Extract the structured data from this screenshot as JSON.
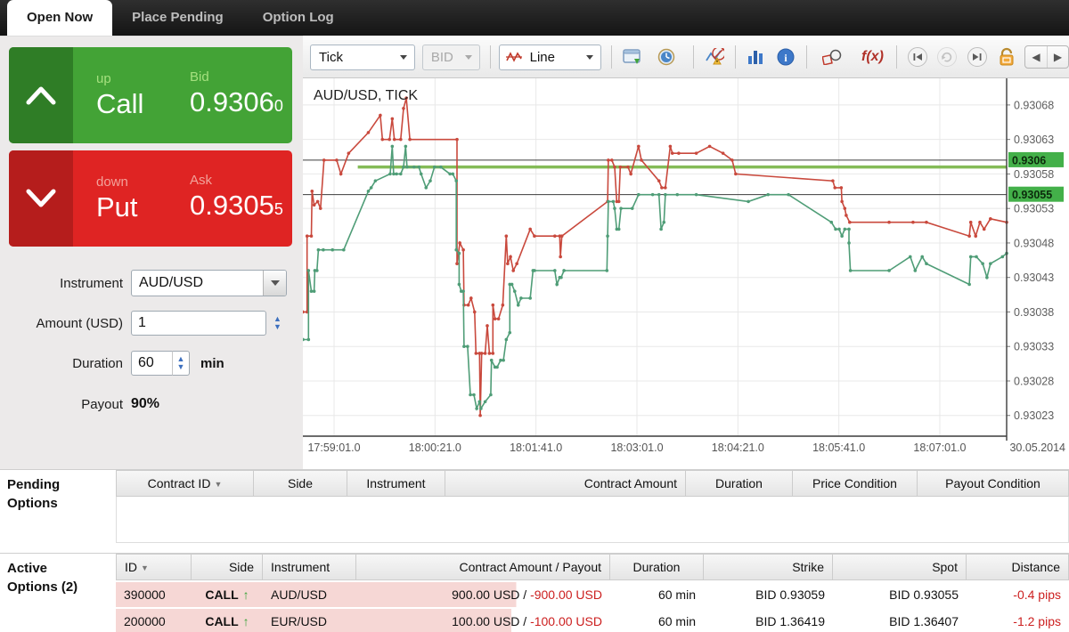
{
  "tabs": [
    {
      "label": "Open Now",
      "active": true
    },
    {
      "label": "Place Pending",
      "active": false
    },
    {
      "label": "Option Log",
      "active": false
    }
  ],
  "trade": {
    "call": {
      "small_label": "up",
      "main_label": "Call",
      "price_label": "Bid",
      "price": "0.9306",
      "price_sub": "0"
    },
    "put": {
      "small_label": "down",
      "main_label": "Put",
      "price_label": "Ask",
      "price": "0.9305",
      "price_sub": "5"
    }
  },
  "form": {
    "instrument_label": "Instrument",
    "instrument_value": "AUD/USD",
    "amount_label": "Amount (USD)",
    "amount_value": "1",
    "duration_label": "Duration",
    "duration_value": "60",
    "duration_unit": "min",
    "payout_label": "Payout",
    "payout_value": "90%"
  },
  "toolbar": {
    "period": "Tick",
    "side": "BID",
    "chart_type": "Line"
  },
  "icons": {
    "sort": "▼",
    "spin_up": "▲",
    "spin_down": "▼",
    "pan_left": "◀",
    "pan_right": "▶",
    "go_start": "◀",
    "repeat": "↻",
    "go_end": "▶",
    "fx": "f(x)",
    "call_arrow": "↑"
  },
  "chart_data": {
    "type": "line",
    "title": "AUD/USD, TICK",
    "date": "30.05.2014",
    "ylim": [
      0.9302,
      0.930716
    ],
    "yticks": [
      "0.93068",
      "0.93063",
      "0.93058",
      "0.93053",
      "0.93048",
      "0.93043",
      "0.93038",
      "0.93033",
      "0.93028",
      "0.93023"
    ],
    "xticks": [
      "17:59:01.0",
      "18:00:21.0",
      "18:01:41.0",
      "18:03:01.0",
      "18:04:21.0",
      "18:05:41.0",
      "18:07:01.0"
    ],
    "price_lines": [
      {
        "name": "current-bid",
        "price": 0.9306,
        "color": "#3c3c3c",
        "width": 1,
        "from": 0
      },
      {
        "name": "current-ask",
        "price": 0.93055,
        "color": "#3c3c3c",
        "width": 1,
        "from": 0
      },
      {
        "name": "strike",
        "price": 0.93059,
        "color": "#84bb57",
        "width": 3.5,
        "from": 7.8
      }
    ],
    "badges": [
      {
        "label": "0.9306",
        "price": 0.9306,
        "color": "#43b049"
      },
      {
        "label": "0.93055",
        "price": 0.93055,
        "color": "#43b049"
      }
    ],
    "series": [
      {
        "name": "ASK",
        "color": "#c9493d",
        "points": [
          [
            0,
            0.93038
          ],
          [
            0.6,
            0.93038
          ],
          [
            0.6,
            0.93049
          ],
          [
            1.2,
            0.93049
          ],
          [
            1.3,
            0.930555
          ],
          [
            1.6,
            0.930535
          ],
          [
            2.1,
            0.93054
          ],
          [
            2.5,
            0.93053
          ],
          [
            3,
            0.9306
          ],
          [
            4.8,
            0.9306
          ],
          [
            5.4,
            0.93058
          ],
          [
            6.5,
            0.93061
          ],
          [
            9.3,
            0.93064
          ],
          [
            11,
            0.930665
          ],
          [
            11.3,
            0.93063
          ],
          [
            12.3,
            0.93063
          ],
          [
            12.7,
            0.93066
          ],
          [
            13,
            0.93063
          ],
          [
            13.9,
            0.93063
          ],
          [
            14.3,
            0.930675
          ],
          [
            14.7,
            0.93069
          ],
          [
            15.2,
            0.93063
          ],
          [
            21.9,
            0.93063
          ],
          [
            21.9,
            0.93045
          ],
          [
            22.3,
            0.93048
          ],
          [
            22.8,
            0.93047
          ],
          [
            22.9,
            0.93039
          ],
          [
            23.5,
            0.93039
          ],
          [
            23.9,
            0.9304
          ],
          [
            24.4,
            0.93038
          ],
          [
            24.6,
            0.93032
          ],
          [
            25.1,
            0.93032
          ],
          [
            25.2,
            0.93023
          ],
          [
            25.4,
            0.93032
          ],
          [
            25.9,
            0.93032
          ],
          [
            26.2,
            0.93036
          ],
          [
            26.5,
            0.93032
          ],
          [
            27,
            0.93032
          ],
          [
            27,
            0.93039
          ],
          [
            27.3,
            0.93037
          ],
          [
            27.8,
            0.93037
          ],
          [
            28.4,
            0.93039
          ],
          [
            28.9,
            0.93049
          ],
          [
            29.1,
            0.93045
          ],
          [
            29.5,
            0.93046
          ],
          [
            29.9,
            0.93044
          ],
          [
            30.4,
            0.93045
          ],
          [
            32.3,
            0.9305
          ],
          [
            32.9,
            0.93049
          ],
          [
            35.8,
            0.93049
          ],
          [
            36.5,
            0.93049
          ],
          [
            36.6,
            0.93046
          ],
          [
            36.8,
            0.93049
          ],
          [
            43.3,
            0.93054
          ],
          [
            43.4,
            0.9306
          ],
          [
            43.9,
            0.9306
          ],
          [
            44.3,
            0.93059
          ],
          [
            44.6,
            0.93054
          ],
          [
            44.9,
            0.93054
          ],
          [
            45.1,
            0.93059
          ],
          [
            46.2,
            0.93059
          ],
          [
            46.6,
            0.93058
          ],
          [
            47.7,
            0.93062
          ],
          [
            48.1,
            0.9306
          ],
          [
            50.6,
            0.93057
          ],
          [
            51,
            0.93056
          ],
          [
            51.5,
            0.93056
          ],
          [
            52.2,
            0.93062
          ],
          [
            52.5,
            0.93061
          ],
          [
            53.4,
            0.93061
          ],
          [
            55.9,
            0.93061
          ],
          [
            57.8,
            0.93062
          ],
          [
            59.7,
            0.93061
          ],
          [
            61,
            0.9306
          ],
          [
            61.5,
            0.93058
          ],
          [
            75.3,
            0.93057
          ],
          [
            75.6,
            0.93056
          ],
          [
            76.5,
            0.93056
          ],
          [
            76.6,
            0.93054
          ],
          [
            77,
            0.93053
          ],
          [
            77.2,
            0.93052
          ],
          [
            77.7,
            0.93051
          ],
          [
            83.3,
            0.93051
          ],
          [
            86.7,
            0.93051
          ],
          [
            88.6,
            0.93051
          ],
          [
            94.7,
            0.93049
          ],
          [
            94.9,
            0.93051
          ],
          [
            95.6,
            0.93049
          ],
          [
            96.2,
            0.93051
          ],
          [
            96.8,
            0.9305
          ],
          [
            97.7,
            0.930515
          ],
          [
            100,
            0.93051
          ]
        ]
      },
      {
        "name": "BID",
        "color": "#4f9d77",
        "points": [
          [
            0,
            0.93034
          ],
          [
            0.8,
            0.93034
          ],
          [
            0.8,
            0.93044
          ],
          [
            1.2,
            0.93041
          ],
          [
            1.6,
            0.93041
          ],
          [
            1.7,
            0.93044
          ],
          [
            2,
            0.93044
          ],
          [
            2.2,
            0.93047
          ],
          [
            2.9,
            0.93047
          ],
          [
            4.2,
            0.93047
          ],
          [
            5.8,
            0.93047
          ],
          [
            9.3,
            0.930555
          ],
          [
            9.7,
            0.93056
          ],
          [
            10.3,
            0.93057
          ],
          [
            12.4,
            0.93058
          ],
          [
            12.7,
            0.93062
          ],
          [
            12.9,
            0.93058
          ],
          [
            13.3,
            0.93058
          ],
          [
            13.9,
            0.93058
          ],
          [
            14.3,
            0.93059
          ],
          [
            14.6,
            0.93062
          ],
          [
            14.8,
            0.93059
          ],
          [
            15.8,
            0.93059
          ],
          [
            16.5,
            0.93059
          ],
          [
            16.8,
            0.93058
          ],
          [
            17.5,
            0.93056
          ],
          [
            18.1,
            0.93057
          ],
          [
            18.7,
            0.93059
          ],
          [
            19.6,
            0.93059
          ],
          [
            20.9,
            0.93058
          ],
          [
            21.3,
            0.93058
          ],
          [
            21.8,
            0.93057
          ],
          [
            21.8,
            0.93047
          ],
          [
            22.2,
            0.930465
          ],
          [
            22.2,
            0.93042
          ],
          [
            22.5,
            0.93041
          ],
          [
            22.8,
            0.93041
          ],
          [
            22.9,
            0.93033
          ],
          [
            23.4,
            0.93033
          ],
          [
            23.8,
            0.93026
          ],
          [
            24.3,
            0.93026
          ],
          [
            24.7,
            0.93024
          ],
          [
            25.1,
            0.93025
          ],
          [
            25.3,
            0.93024
          ],
          [
            25.9,
            0.93025
          ],
          [
            26.7,
            0.93026
          ],
          [
            26.8,
            0.93031
          ],
          [
            27.3,
            0.9303
          ],
          [
            27.6,
            0.9303
          ],
          [
            28.1,
            0.93031
          ],
          [
            28.5,
            0.93031
          ],
          [
            28.9,
            0.93034
          ],
          [
            29.4,
            0.93035
          ],
          [
            29.4,
            0.93042
          ],
          [
            29.7,
            0.93042
          ],
          [
            30.1,
            0.93041
          ],
          [
            30.6,
            0.93039
          ],
          [
            31,
            0.9304
          ],
          [
            32.3,
            0.9304
          ],
          [
            32.7,
            0.93044
          ],
          [
            32.9,
            0.93044
          ],
          [
            35.8,
            0.93044
          ],
          [
            36.1,
            0.93042
          ],
          [
            36.5,
            0.93043
          ],
          [
            36.7,
            0.93043
          ],
          [
            37.1,
            0.93044
          ],
          [
            43.2,
            0.93044
          ],
          [
            43.3,
            0.93049
          ],
          [
            43.4,
            0.93054
          ],
          [
            44.1,
            0.93054
          ],
          [
            44.3,
            0.93053
          ],
          [
            44.6,
            0.9305
          ],
          [
            44.9,
            0.9305
          ],
          [
            45.2,
            0.93053
          ],
          [
            46.8,
            0.93053
          ],
          [
            47.7,
            0.93055
          ],
          [
            49.7,
            0.93055
          ],
          [
            50.6,
            0.93055
          ],
          [
            50.9,
            0.9305
          ],
          [
            51.3,
            0.93051
          ],
          [
            51.5,
            0.93055
          ],
          [
            53.2,
            0.93055
          ],
          [
            55.9,
            0.93055
          ],
          [
            63.3,
            0.93054
          ],
          [
            66.1,
            0.93055
          ],
          [
            69,
            0.93055
          ],
          [
            75.1,
            0.93051
          ],
          [
            75.7,
            0.9305
          ],
          [
            76.2,
            0.9305
          ],
          [
            76.6,
            0.93049
          ],
          [
            77,
            0.9305
          ],
          [
            77.6,
            0.9305
          ],
          [
            77.6,
            0.93048
          ],
          [
            77.8,
            0.93044
          ],
          [
            83.3,
            0.93044
          ],
          [
            86.3,
            0.93046
          ],
          [
            87,
            0.93044
          ],
          [
            88,
            0.93046
          ],
          [
            88.6,
            0.93045
          ],
          [
            94.7,
            0.93042
          ],
          [
            94.9,
            0.93046
          ],
          [
            95.7,
            0.93046
          ],
          [
            96.6,
            0.93045
          ],
          [
            97.2,
            0.93043
          ],
          [
            97.7,
            0.93045
          ],
          [
            99.4,
            0.93046
          ],
          [
            100,
            0.930465
          ]
        ]
      }
    ]
  },
  "pending": {
    "title_line1": "Pending",
    "title_line2": "Options",
    "headers": [
      "Contract ID",
      "Side",
      "Instrument",
      "Contract Amount",
      "Duration",
      "Price Condition",
      "Payout Condition"
    ]
  },
  "active": {
    "title_line1": "Active",
    "title_line2": "Options (2)",
    "headers": [
      "ID",
      "Side",
      "Instrument",
      "Contract Amount / Payout",
      "Duration",
      "Strike",
      "Spot",
      "Distance"
    ],
    "rows": [
      {
        "id": "390000",
        "side": "CALL",
        "instrument": "AUD/USD",
        "amount": "900.00 USD / ",
        "payout": "-900.00 USD",
        "duration": "60 min",
        "strike": "BID 0.93059",
        "spot": "BID 0.93055",
        "distance": "-0.4 pips",
        "progress": 0.42
      },
      {
        "id": "200000",
        "side": "CALL",
        "instrument": "EUR/USD",
        "amount": "100.00 USD / ",
        "payout": "-100.00 USD",
        "duration": "60 min",
        "strike": "BID 1.36419",
        "spot": "BID 1.36407",
        "distance": "-1.2 pips",
        "progress": 0.415
      }
    ]
  }
}
